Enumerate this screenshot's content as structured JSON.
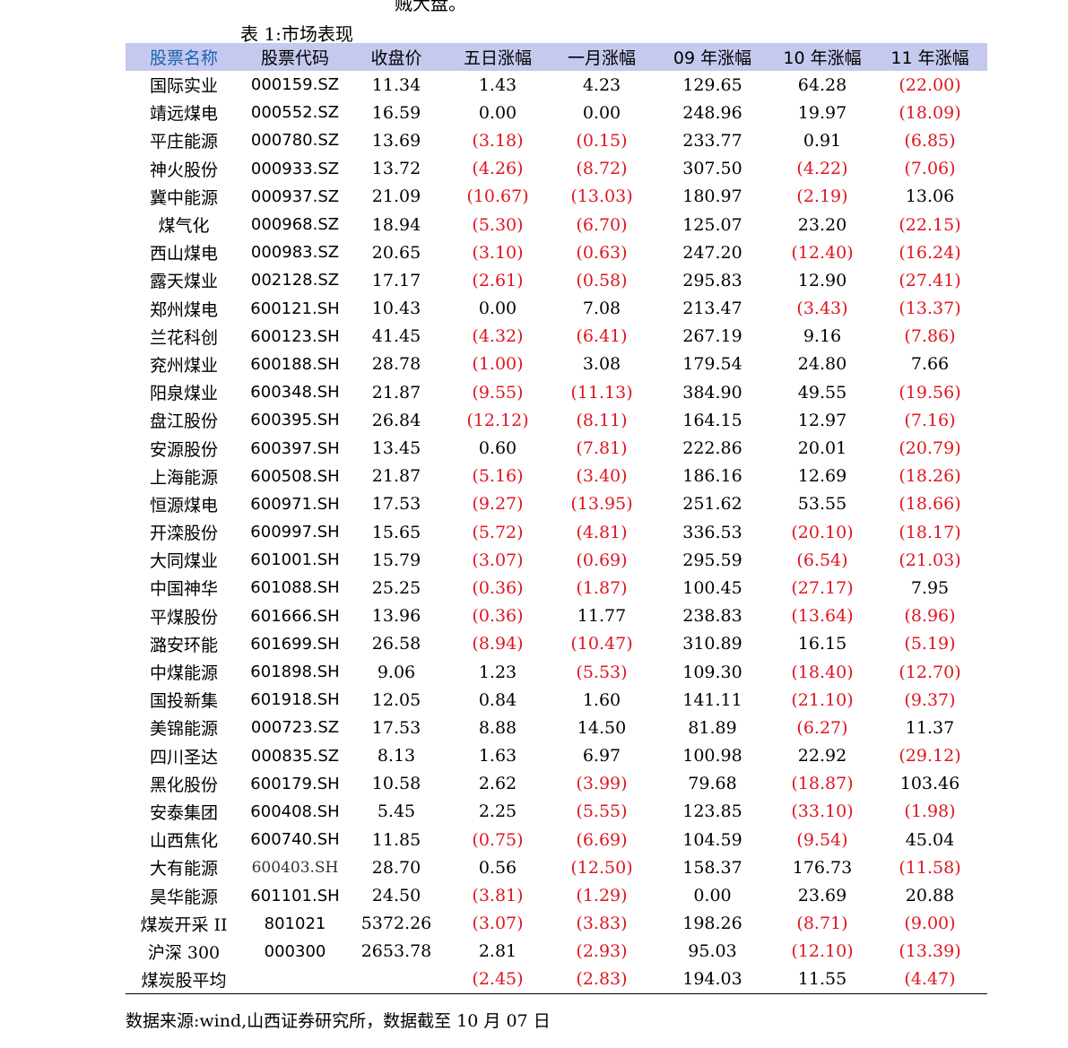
{
  "clip_text": "贼大盘。",
  "caption": "表 1:市场表现",
  "headers": [
    "股票名称",
    "股票代码",
    "收盘价",
    "五日涨幅",
    "一月涨幅",
    "09 年涨幅",
    "10 年涨幅",
    "11 年涨幅"
  ],
  "rows": [
    [
      "国际实业",
      "000159.SZ",
      "11.34",
      "1.43",
      "4.23",
      "129.65",
      "64.28",
      "(22.00)"
    ],
    [
      "靖远煤电",
      "000552.SZ",
      "16.59",
      "0.00",
      "0.00",
      "248.96",
      "19.97",
      "(18.09)"
    ],
    [
      "平庄能源",
      "000780.SZ",
      "13.69",
      "(3.18)",
      "(0.15)",
      "233.77",
      "0.91",
      "(6.85)"
    ],
    [
      "神火股份",
      "000933.SZ",
      "13.72",
      "(4.26)",
      "(8.72)",
      "307.50",
      "(4.22)",
      "(7.06)"
    ],
    [
      "冀中能源",
      "000937.SZ",
      "21.09",
      "(10.67)",
      "(13.03)",
      "180.97",
      "(2.19)",
      "13.06"
    ],
    [
      "煤气化",
      "000968.SZ",
      "18.94",
      "(5.30)",
      "(6.70)",
      "125.07",
      "23.20",
      "(22.15)"
    ],
    [
      "西山煤电",
      "000983.SZ",
      "20.65",
      "(3.10)",
      "(0.63)",
      "247.20",
      "(12.40)",
      "(16.24)"
    ],
    [
      "露天煤业",
      "002128.SZ",
      "17.17",
      "(2.61)",
      "(0.58)",
      "295.83",
      "12.90",
      "(27.41)"
    ],
    [
      "郑州煤电",
      "600121.SH",
      "10.43",
      "0.00",
      "7.08",
      "213.47",
      "(3.43)",
      "(13.37)"
    ],
    [
      "兰花科创",
      "600123.SH",
      "41.45",
      "(4.32)",
      "(6.41)",
      "267.19",
      "9.16",
      "(7.86)"
    ],
    [
      "兖州煤业",
      "600188.SH",
      "28.78",
      "(1.00)",
      "3.08",
      "179.54",
      "24.80",
      "7.66"
    ],
    [
      "阳泉煤业",
      "600348.SH",
      "21.87",
      "(9.55)",
      "(11.13)",
      "384.90",
      "49.55",
      "(19.56)"
    ],
    [
      "盘江股份",
      "600395.SH",
      "26.84",
      "(12.12)",
      "(8.11)",
      "164.15",
      "12.97",
      "(7.16)"
    ],
    [
      "安源股份",
      "600397.SH",
      "13.45",
      "0.60",
      "(7.81)",
      "222.86",
      "20.01",
      "(20.79)"
    ],
    [
      "上海能源",
      "600508.SH",
      "21.87",
      "(5.16)",
      "(3.40)",
      "186.16",
      "12.69",
      "(18.26)"
    ],
    [
      "恒源煤电",
      "600971.SH",
      "17.53",
      "(9.27)",
      "(13.95)",
      "251.62",
      "53.55",
      "(18.66)"
    ],
    [
      "开滦股份",
      "600997.SH",
      "15.65",
      "(5.72)",
      "(4.81)",
      "336.53",
      "(20.10)",
      "(18.17)"
    ],
    [
      "大同煤业",
      "601001.SH",
      "15.79",
      "(3.07)",
      "(0.69)",
      "295.59",
      "(6.54)",
      "(21.03)"
    ],
    [
      "中国神华",
      "601088.SH",
      "25.25",
      "(0.36)",
      "(1.87)",
      "100.45",
      "(27.17)",
      "7.95"
    ],
    [
      "平煤股份",
      "601666.SH",
      "13.96",
      "(0.36)",
      "11.77",
      "238.83",
      "(13.64)",
      "(8.96)"
    ],
    [
      "潞安环能",
      "601699.SH",
      "26.58",
      "(8.94)",
      "(10.47)",
      "310.89",
      "16.15",
      "(5.19)"
    ],
    [
      "中煤能源",
      "601898.SH",
      "9.06",
      "1.23",
      "(5.53)",
      "109.30",
      "(18.40)",
      "(12.70)"
    ],
    [
      "国投新集",
      "601918.SH",
      "12.05",
      "0.84",
      "1.60",
      "141.11",
      "(21.10)",
      "(9.37)"
    ],
    [
      "美锦能源",
      "000723.SZ",
      "17.53",
      "8.88",
      "14.50",
      "81.89",
      "(6.27)",
      "11.37"
    ],
    [
      "四川圣达",
      "000835.SZ",
      "8.13",
      "1.63",
      "6.97",
      "100.98",
      "22.92",
      "(29.12)"
    ],
    [
      "黑化股份",
      "600179.SH",
      "10.58",
      "2.62",
      "(3.99)",
      "79.68",
      "(18.87)",
      "103.46"
    ],
    [
      "安泰集团",
      "600408.SH",
      "5.45",
      "2.25",
      "(5.55)",
      "123.85",
      "(33.10)",
      "(1.98)"
    ],
    [
      "山西焦化",
      "600740.SH",
      "11.85",
      "(0.75)",
      "(6.69)",
      "104.59",
      "(9.54)",
      "45.04"
    ],
    [
      "大有能源",
      "600403.SH",
      "28.70",
      "0.56",
      "(12.50)",
      "158.37",
      "176.73",
      "(11.58)"
    ],
    [
      "昊华能源",
      "601101.SH",
      "24.50",
      "(3.81)",
      "(1.29)",
      "0.00",
      "23.69",
      "20.88"
    ],
    [
      "煤炭开采 II",
      "801021",
      "5372.26",
      "(3.07)",
      "(3.83)",
      "198.26",
      "(8.71)",
      "(9.00)"
    ],
    [
      "沪深 300",
      "000300",
      "2653.78",
      "2.81",
      "(2.93)",
      "95.03",
      "(12.10)",
      "(13.39)"
    ],
    [
      "煤炭股平均",
      "",
      "",
      "(2.45)",
      "(2.83)",
      "194.03",
      "11.55",
      "(4.47)"
    ]
  ],
  "source_note": "数据来源:wind,山西证券研究所，数据截至 10 月 07 日",
  "colors": {
    "header_bg": "#c5c9ee",
    "header_name": "#1a64b0",
    "negative": "#e0141e"
  }
}
